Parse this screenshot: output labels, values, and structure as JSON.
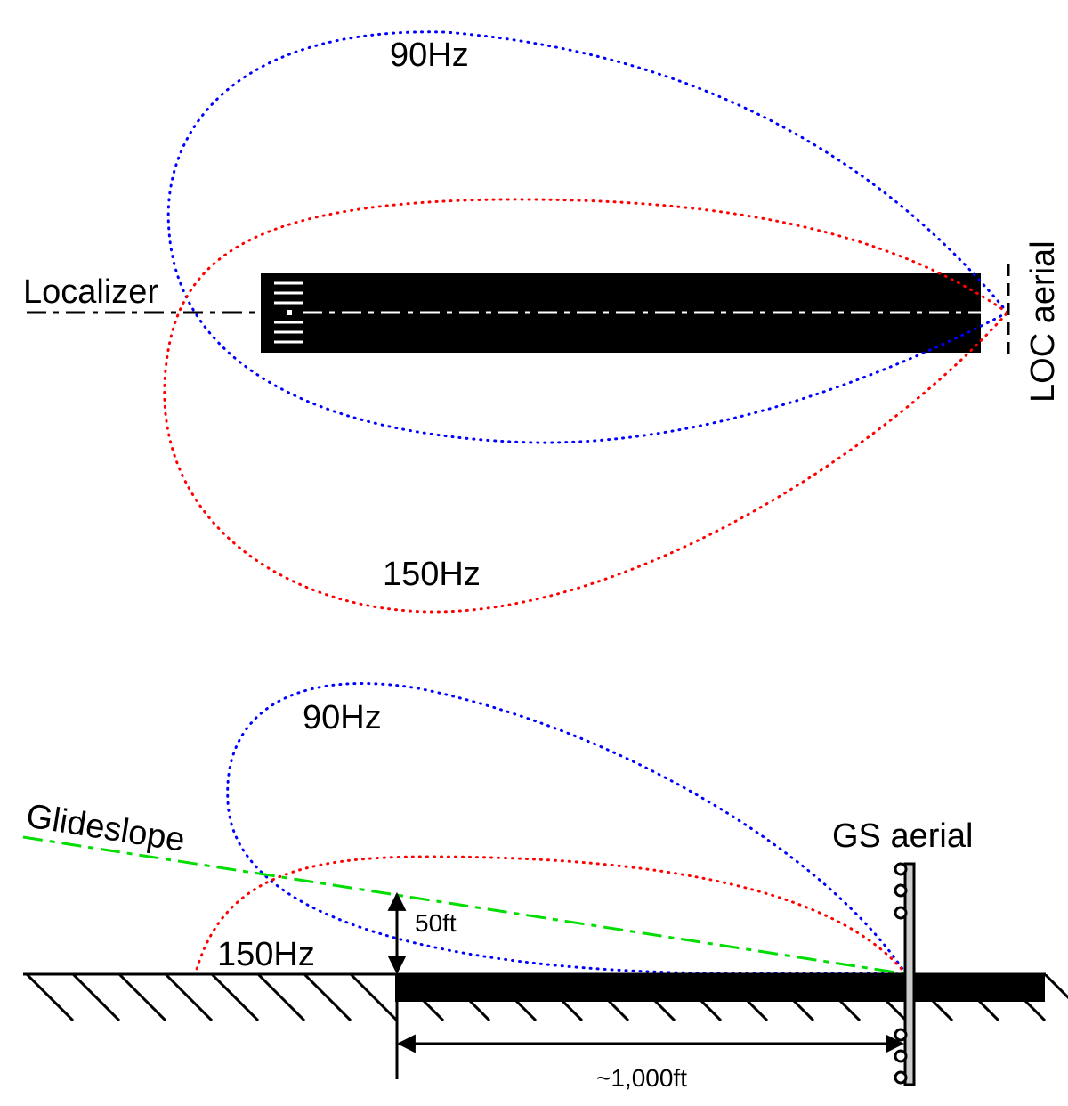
{
  "colors": {
    "hz90": "#0000ff",
    "hz150": "#ff0000",
    "glideslope": "#00dd00",
    "runway": "#000000",
    "ground": "#000000",
    "aerial_mast": "#cccccc"
  },
  "localizer": {
    "label": "Localizer",
    "lobe_90_label": "90Hz",
    "lobe_150_label": "150Hz",
    "aerial_label": "LOC aerial"
  },
  "glideslope": {
    "label": "Glideslope",
    "lobe_90_label": "90Hz",
    "lobe_150_label": "150Hz",
    "aerial_label": "GS aerial",
    "height_label": "50ft",
    "distance_label": "~1,000ft"
  }
}
